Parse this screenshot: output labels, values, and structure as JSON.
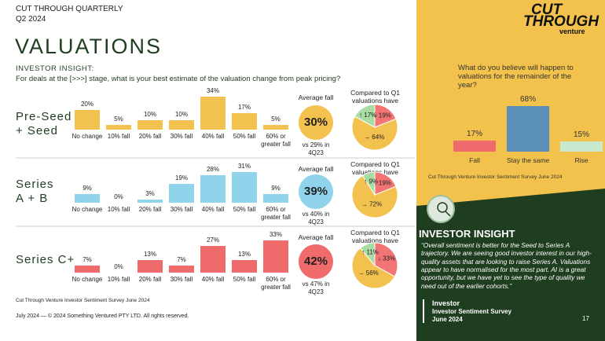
{
  "header": {
    "kicker": "CUT THROUGH QUARTERLY",
    "period": "Q2 2024",
    "title": "VALUATIONS",
    "section": "INVESTOR INSIGHT:",
    "question": "For deals at the [>>>] stage, what is your best estimate of the valuation change from peak pricing?"
  },
  "rows": [
    {
      "stage": [
        "Pre-Seed",
        "+ Seed"
      ],
      "average_header": "Average fall",
      "average": "30%",
      "comparison": "vs 29% in 4Q23",
      "compared_header": "Compared to Q1 valuations have"
    },
    {
      "stage": [
        "Series",
        "A + B"
      ],
      "average_header": "Average fall",
      "average": "39%",
      "comparison": "vs 40% in 4Q23",
      "compared_header": "Compared to Q1 valuations have"
    },
    {
      "stage": [
        "Series C+"
      ],
      "average_header": "Average fall",
      "average": "42%",
      "comparison": "vs 47% in 4Q23",
      "compared_header": "Compared to Q1 valuations have"
    }
  ],
  "chart_data": [
    {
      "type": "bar",
      "categories": [
        "No change",
        "10% fall",
        "20% fall",
        "30% fall",
        "40% fall",
        "50% fall",
        "60% or greater fall"
      ],
      "values": [
        20,
        5,
        10,
        10,
        34,
        17,
        5
      ],
      "value_labels": [
        "20%",
        "5%",
        "10%",
        "10%",
        "34%",
        "17%",
        "5%"
      ],
      "color": "#f2c14e"
    },
    {
      "type": "bar",
      "categories": [
        "No change",
        "10% fall",
        "20% fall",
        "30% fall",
        "40% fall",
        "50% fall",
        "60% or greater fall"
      ],
      "values": [
        9,
        0,
        3,
        19,
        28,
        31,
        9
      ],
      "value_labels": [
        "9%",
        "0%",
        "3%",
        "19%",
        "28%",
        "31%",
        "9%"
      ],
      "color": "#8fd4ea"
    },
    {
      "type": "bar",
      "categories": [
        "No change",
        "10% fall",
        "20% fall",
        "30% fall",
        "40% fall",
        "50% fall",
        "60% or greater fall"
      ],
      "values": [
        7,
        0,
        13,
        7,
        27,
        13,
        33
      ],
      "value_labels": [
        "7%",
        "0%",
        "13%",
        "7%",
        "27%",
        "13%",
        "33%"
      ],
      "color": "#f06b6b"
    },
    {
      "type": "pie",
      "values": [
        19,
        64,
        17
      ],
      "value_labels": [
        "↓ 19%",
        "→ 64%",
        "↑ 17%"
      ],
      "colors": [
        "#f27474",
        "#f2c14e",
        "#a9dca2"
      ]
    },
    {
      "type": "pie",
      "values": [
        19,
        72,
        9
      ],
      "value_labels": [
        "↓ 19%",
        "→ 72%",
        "↑ 9%"
      ],
      "colors": [
        "#f27474",
        "#f2c14e",
        "#a9dca2"
      ]
    },
    {
      "type": "pie",
      "values": [
        33,
        56,
        11
      ],
      "value_labels": [
        "↓ 33%",
        "→ 56%",
        "↑ 11%"
      ],
      "colors": [
        "#f27474",
        "#f2c14e",
        "#a9dca2"
      ]
    },
    {
      "type": "bar",
      "title": "What do you believe will happen to valuations for the remainder of the year?",
      "categories": [
        "Fall",
        "Stay the same",
        "Rise"
      ],
      "values": [
        17,
        68,
        15
      ],
      "value_labels": [
        "17%",
        "68%",
        "15%"
      ],
      "colors": [
        "#f06b6b",
        "#5a90b8",
        "#c6e9d0"
      ],
      "source": "Cut Through Venture Investor Sentiment Survey June 2024"
    }
  ],
  "source": "Cut Through Venture Investor Sentiment Survey June 2024",
  "footer": "July 2024 — © 2024 Something Ventured PTY LTD. All rights reserved.",
  "logo": {
    "line1": "CUT",
    "line2": "THROUGH",
    "line3": "venture"
  },
  "insight": {
    "title": "INVESTOR INSIGHT",
    "quote": "“Overall sentiment is better for the Seed to Series A trajectory. We are seeing good investor interest in our high-quality assets that are looking to raise Series A. Valuations appear to have normalised for the most part. AI is a great opportunity, but we have yet to see the type of quality we need out of the earlier cohorts.”",
    "attribution": "Investor",
    "role": "Investor Sentiment Survey",
    "date": "June 2024"
  },
  "page_number": "17"
}
